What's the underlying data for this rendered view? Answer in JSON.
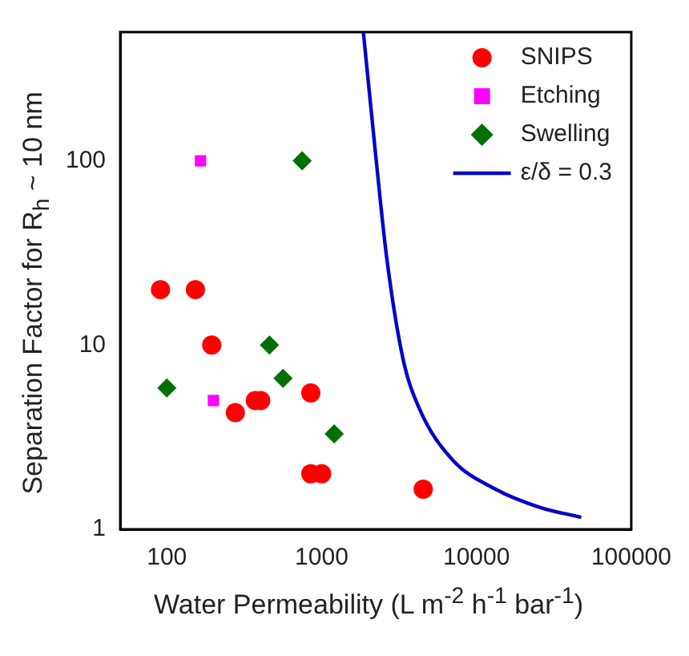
{
  "chart_data": {
    "type": "scatter",
    "xlabel": "Water Permeability (L m$^{-2}$ h$^{-1}$ bar$^{-1}$)",
    "ylabel": "Separation Factor for R$_{h}$ ~ 10 nm",
    "log": "xy",
    "xlim": [
      50,
      100000
    ],
    "ylim": [
      1,
      500
    ],
    "xticks": [
      100,
      1000,
      10000,
      100000
    ],
    "yticks": [
      1,
      10,
      100
    ],
    "grid": false,
    "legend": "top right",
    "series": [
      {
        "name": "SNIPS",
        "color": "#ff0000",
        "marker": "circle",
        "x": [
          91,
          153,
          195,
          277,
          373,
          404,
          851,
          851,
          1000,
          4530
        ],
        "values": [
          20,
          20,
          10,
          4.3,
          5,
          5,
          5.5,
          2,
          2,
          1.65
        ]
      },
      {
        "name": "Etching",
        "color": "#ff00ff",
        "marker": "square",
        "x": [
          165,
          200
        ],
        "values": [
          100,
          5
        ]
      },
      {
        "name": "Swelling",
        "color": "#007000",
        "marker": "diamond",
        "x": [
          100,
          748,
          460,
          563,
          1205
        ],
        "values": [
          5.85,
          100,
          10,
          6.6,
          3.3
        ]
      },
      {
        "name": "ε/δ = 0.3",
        "type": "line",
        "color": "#0000cc",
        "marker": "none",
        "line_style": "solid",
        "x": [
          1860,
          2245,
          2636,
          3357,
          4286,
          6950,
          13280,
          25350,
          47500
        ],
        "values": [
          500,
          103,
          29.5,
          8.4,
          4.5,
          2.4,
          1.65,
          1.32,
          1.16
        ]
      }
    ]
  }
}
